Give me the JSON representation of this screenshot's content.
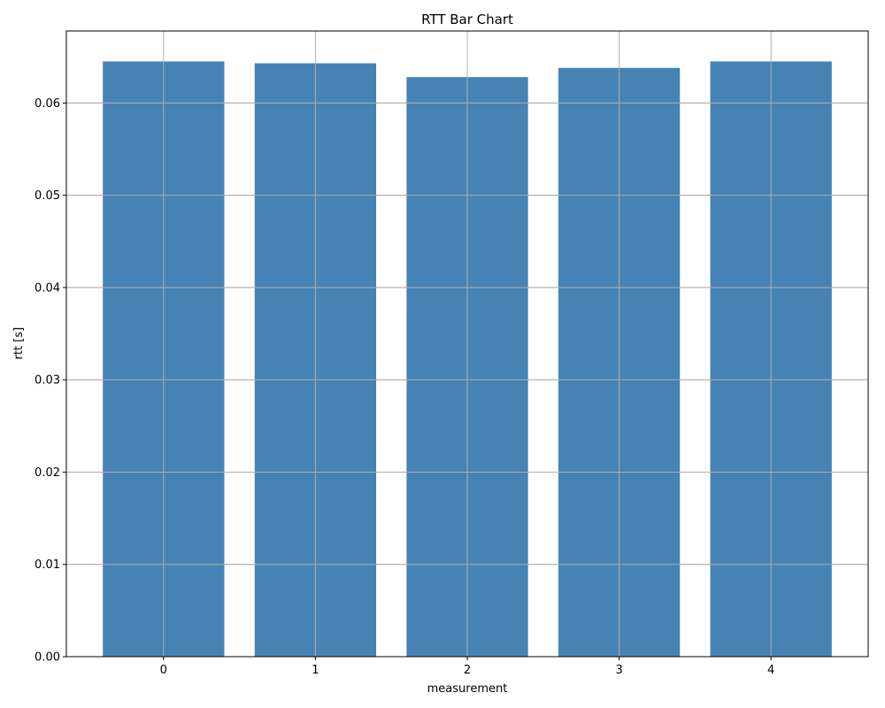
{
  "chart_data": {
    "type": "bar",
    "title": "RTT Bar Chart",
    "xlabel": "measurement",
    "ylabel": "rtt [s]",
    "categories": [
      "0",
      "1",
      "2",
      "3",
      "4"
    ],
    "values": [
      0.0645,
      0.0643,
      0.0628,
      0.0638,
      0.0645
    ],
    "ylim": [
      0,
      0.0678
    ],
    "yticks": [
      "0.00",
      "0.01",
      "0.02",
      "0.03",
      "0.04",
      "0.05",
      "0.06"
    ],
    "grid": true,
    "bar_color": "#4682b4",
    "grid_color": "#b0b0b0"
  }
}
